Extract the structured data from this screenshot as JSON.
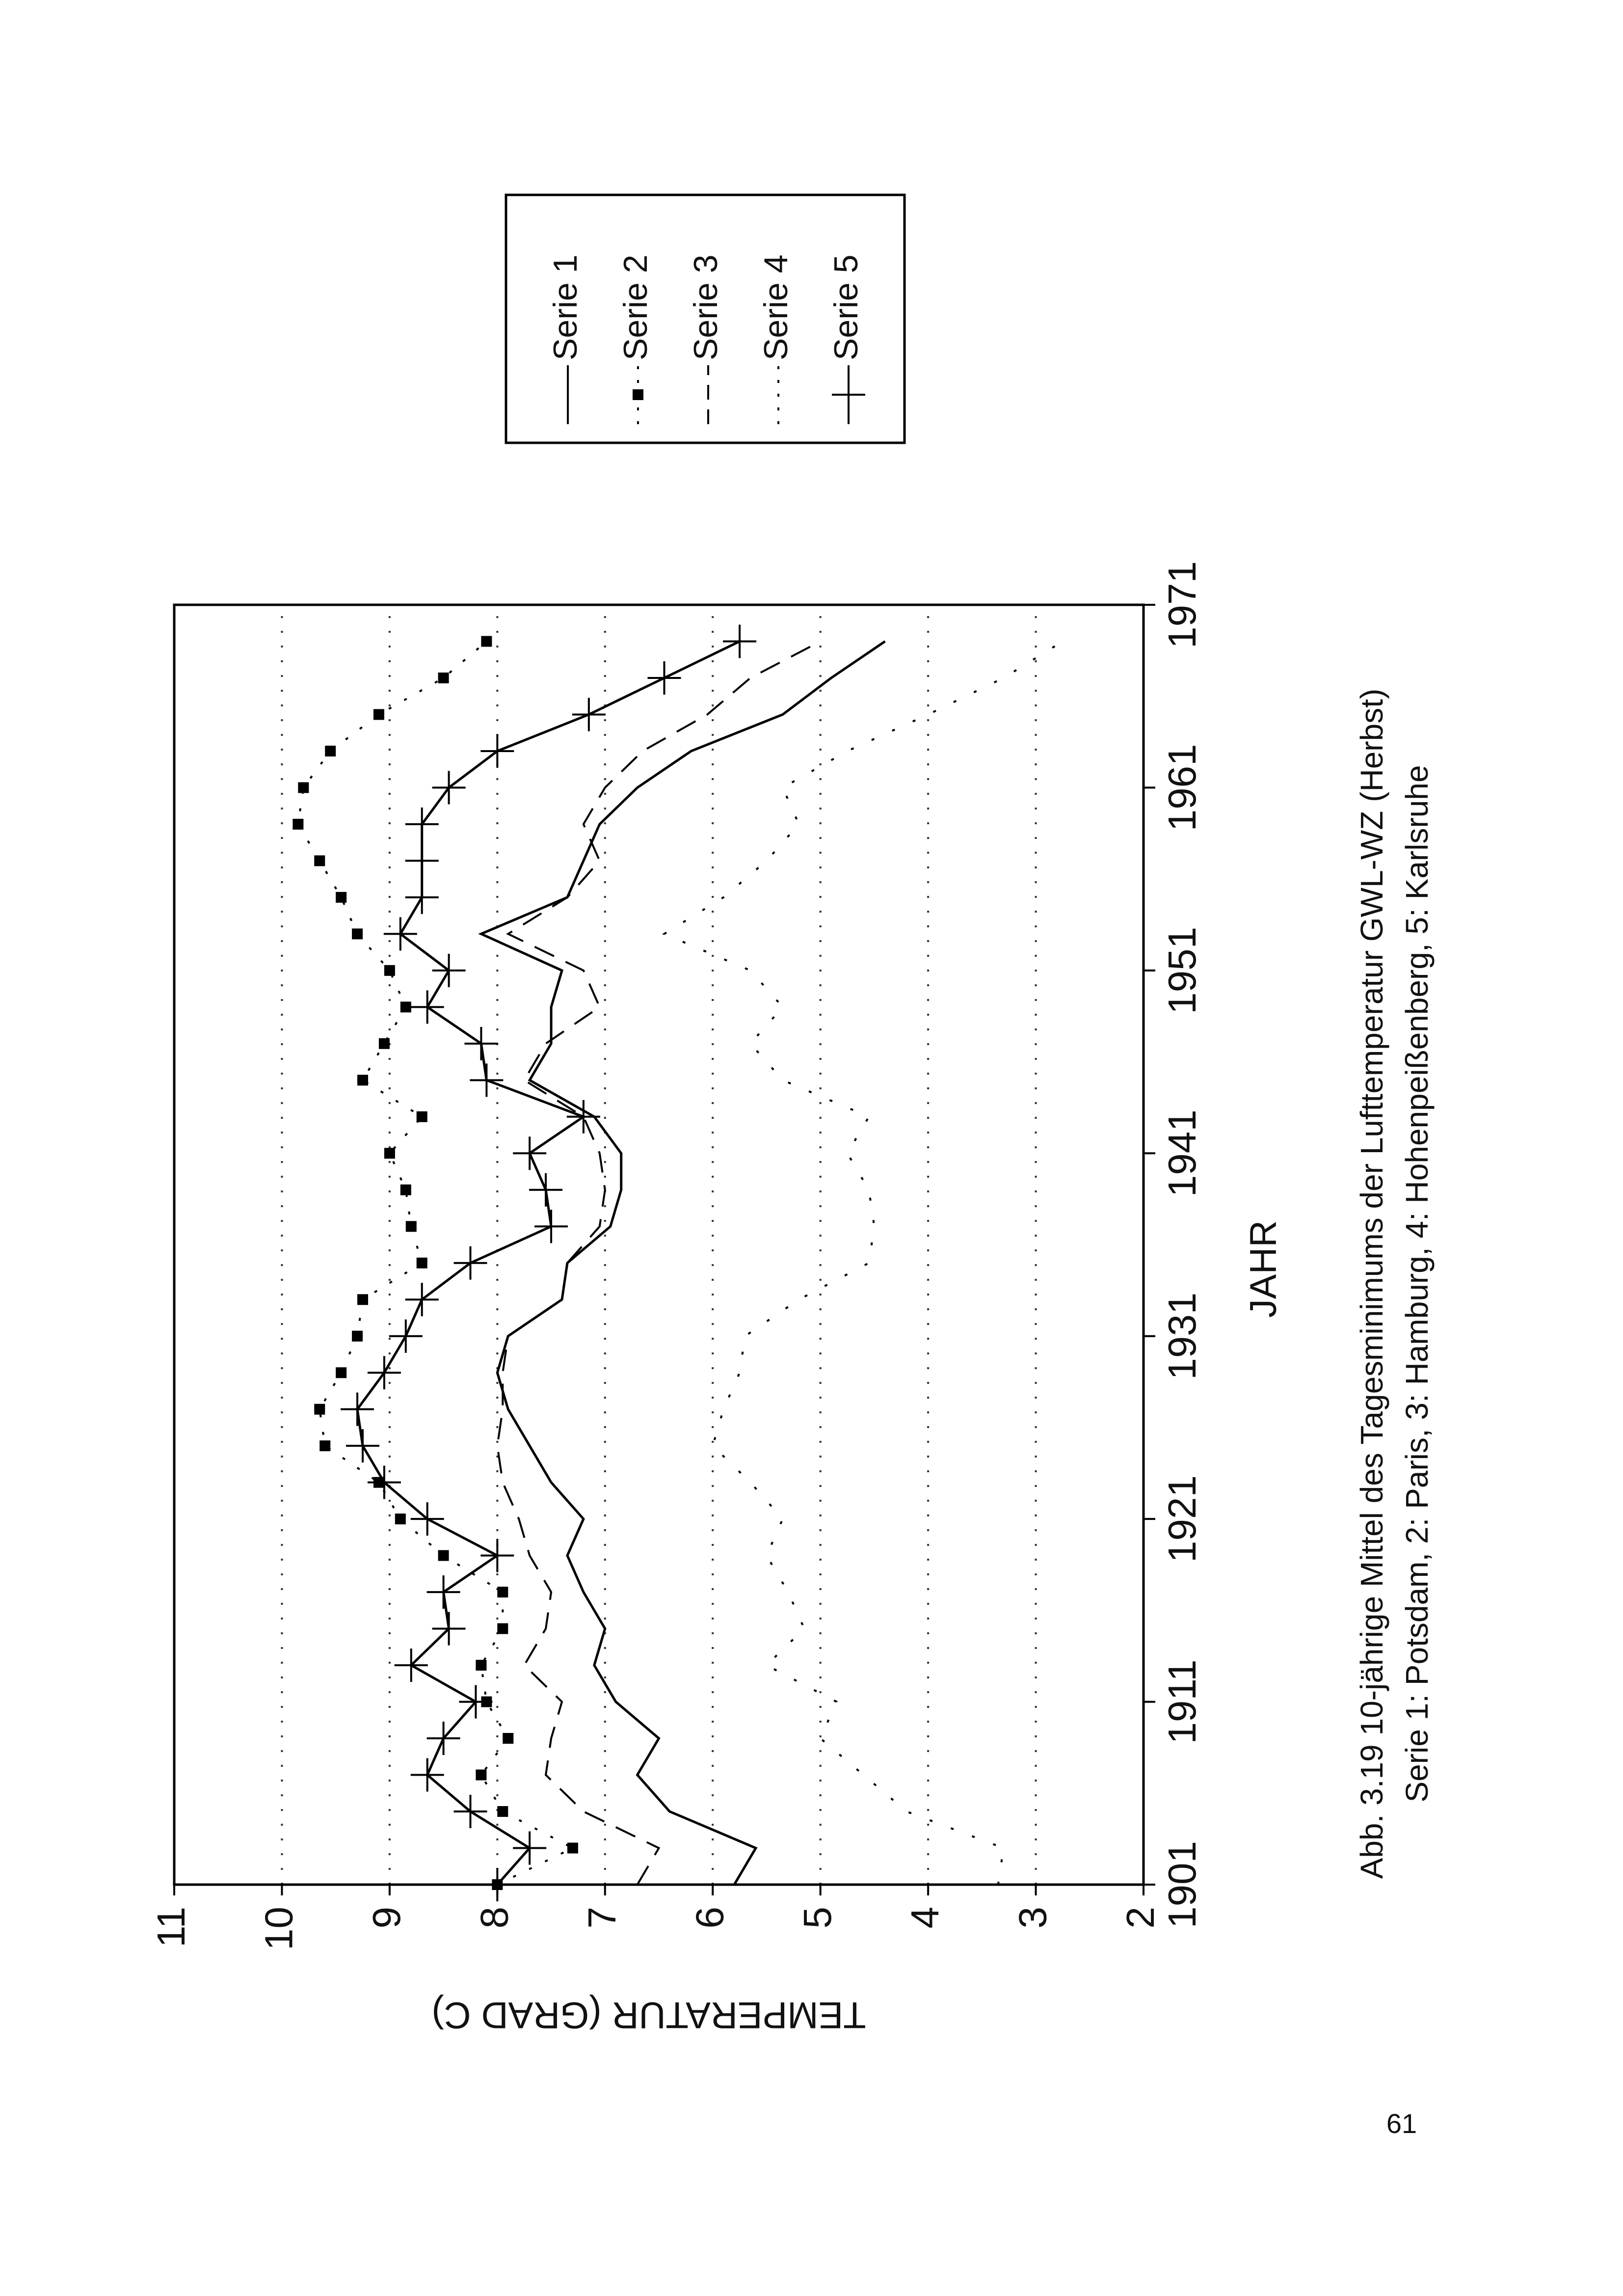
{
  "chart_data": {
    "type": "line",
    "xlabel": "JAHR",
    "ylabel": "TEMPERATUR (GRAD C)",
    "caption": [
      "Abb. 3.19 10-jährige Mittel des Tagesminimums der Lufttemperatur GWL-WZ (Herbst)",
      "Serie 1: Potsdam, 2: Paris, 3: Hamburg, 4: Hohenpeißenberg, 5: Karlsruhe"
    ],
    "xlim": [
      1901,
      1971
    ],
    "xticks": [
      1901,
      1911,
      1921,
      1931,
      1941,
      1951,
      1961,
      1971
    ],
    "ylim": [
      2,
      11
    ],
    "yticks": [
      2,
      3,
      4,
      5,
      6,
      7,
      8,
      9,
      10,
      11
    ],
    "grid": true,
    "x": [
      1901,
      1903,
      1905,
      1907,
      1909,
      1911,
      1913,
      1915,
      1917,
      1919,
      1921,
      1923,
      1925,
      1927,
      1929,
      1931,
      1933,
      1935,
      1937,
      1939,
      1941,
      1943,
      1945,
      1947,
      1949,
      1951,
      1953,
      1955,
      1957,
      1959,
      1961,
      1963,
      1965,
      1967,
      1969
    ],
    "series": [
      {
        "name": "Serie 1",
        "color": "#000000",
        "line": "solid",
        "marker": "none",
        "values": [
          5.8,
          5.6,
          6.4,
          6.7,
          6.5,
          6.9,
          7.1,
          7.0,
          7.2,
          7.35,
          7.2,
          7.5,
          7.7,
          7.9,
          8.0,
          7.9,
          7.4,
          7.35,
          6.95,
          6.85,
          6.85,
          7.1,
          7.7,
          7.5,
          7.5,
          7.4,
          8.15,
          7.35,
          7.2,
          7.05,
          6.7,
          6.2,
          5.35,
          4.9,
          4.4
        ]
      },
      {
        "name": "Serie 2",
        "color": "#000000",
        "line": "dotted",
        "marker": "square",
        "values": [
          8.0,
          7.3,
          7.95,
          8.15,
          7.9,
          8.1,
          8.15,
          7.95,
          7.95,
          8.5,
          8.9,
          9.1,
          9.6,
          9.65,
          9.45,
          9.3,
          9.25,
          8.7,
          8.8,
          8.85,
          9.0,
          8.7,
          9.25,
          9.05,
          8.85,
          9.0,
          9.3,
          9.45,
          9.65,
          9.85,
          9.8,
          9.55,
          9.1,
          8.5,
          8.1
        ]
      },
      {
        "name": "Serie 3",
        "color": "#000000",
        "line": "dashed",
        "marker": "none",
        "values": [
          6.7,
          6.5,
          7.2,
          7.55,
          7.5,
          7.4,
          7.75,
          7.55,
          7.5,
          7.7,
          7.8,
          7.95,
          8.0,
          7.95,
          7.95,
          7.9,
          7.4,
          7.35,
          7.05,
          7.0,
          7.05,
          7.2,
          7.75,
          7.55,
          7.05,
          7.2,
          7.9,
          7.35,
          7.05,
          7.2,
          7.0,
          6.65,
          6.05,
          5.65,
          5.0
        ]
      },
      {
        "name": "Serie 4",
        "color": "#000000",
        "line": "sparse-dotted",
        "marker": "none",
        "values": [
          3.35,
          3.3,
          4.2,
          4.6,
          5.0,
          4.85,
          5.5,
          5.15,
          5.3,
          5.5,
          5.35,
          5.65,
          6.0,
          5.9,
          5.75,
          5.7,
          5.2,
          4.55,
          4.5,
          4.55,
          4.75,
          4.55,
          5.35,
          5.65,
          5.35,
          5.65,
          6.45,
          5.9,
          5.5,
          5.2,
          5.35,
          4.75,
          4.0,
          3.3,
          2.75
        ]
      },
      {
        "name": "Serie 5",
        "color": "#000000",
        "line": "solid",
        "marker": "plus",
        "values": [
          8.0,
          7.7,
          8.25,
          8.65,
          8.5,
          8.2,
          8.8,
          8.45,
          8.5,
          8.0,
          8.65,
          9.05,
          9.25,
          9.3,
          9.05,
          8.85,
          8.7,
          8.25,
          7.5,
          7.55,
          7.7,
          7.2,
          8.1,
          8.15,
          8.65,
          8.45,
          8.9,
          8.7,
          8.7,
          8.7,
          8.45,
          8.0,
          7.15,
          6.45,
          5.75
        ]
      }
    ]
  },
  "page_number": "61"
}
